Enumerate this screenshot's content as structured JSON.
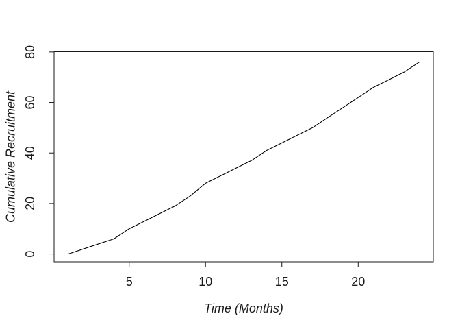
{
  "figure": {
    "background": "#ffffff",
    "axis_color": "#1a1a1a",
    "line_color": "#000000"
  },
  "chart_data": {
    "type": "line",
    "title": "",
    "xlabel": "Time (Months)",
    "ylabel": "Cumulative Recruitment",
    "x": [
      1,
      2,
      3,
      4,
      5,
      6,
      7,
      8,
      9,
      10,
      11,
      12,
      13,
      14,
      15,
      16,
      17,
      18,
      19,
      20,
      21,
      22,
      23,
      24
    ],
    "values": [
      0,
      2,
      4,
      6,
      10,
      13,
      16,
      19,
      23,
      28,
      31,
      34,
      37,
      41,
      44,
      47,
      50,
      54,
      58,
      62,
      66,
      69,
      72,
      76
    ],
    "xticks": [
      5,
      10,
      15,
      20
    ],
    "yticks": [
      0,
      20,
      40,
      60,
      80
    ],
    "xlim": [
      0.08,
      24.92
    ],
    "ylim": [
      -3.1,
      80.1
    ],
    "grid": false,
    "legend": false
  }
}
